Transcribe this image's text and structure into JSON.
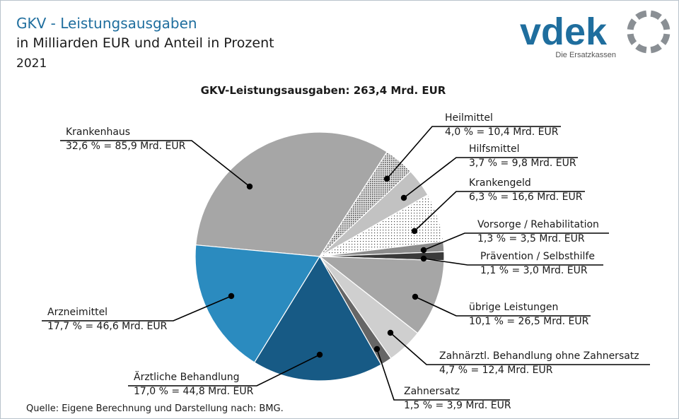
{
  "header": {
    "title": "GKV - Leistungsausgaben",
    "subtitle": "in Milliarden EUR und Anteil in Prozent",
    "year": "2021"
  },
  "logo": {
    "brand": "vdek",
    "tagline": "Die Ersatzkassen",
    "brand_color": "#1f6e9e",
    "ring_color": "#8a8f94"
  },
  "source": "Quelle: Eigene Berechnung und Darstellung nach: BMG.",
  "chart_data": {
    "type": "pie",
    "title": "GKV-Leistungsausgaben:  263,4  Mrd. EUR",
    "unit": "Mrd. EUR",
    "slices": [
      {
        "name": "Krankenhaus",
        "value": 85.9,
        "percent": 32.6,
        "value_label": "32,6 % = 85,9 Mrd. EUR",
        "color": "#a6a6a6",
        "pattern": "solid"
      },
      {
        "name": "Heilmittel",
        "value": 10.4,
        "percent": 4.0,
        "value_label": "4,0 % = 10,4 Mrd. EUR",
        "color": "#b4b4b4",
        "pattern": "dense-dots"
      },
      {
        "name": "Hilfsmittel",
        "value": 9.8,
        "percent": 3.7,
        "value_label": "3,7 % = 9,8 Mrd. EUR",
        "color": "#c2c2c2",
        "pattern": "solid"
      },
      {
        "name": "Krankengeld",
        "value": 16.6,
        "percent": 6.3,
        "value_label": "6,3 % = 16,6 Mrd. EUR",
        "color": "#f2f2f2",
        "pattern": "sparse-dots"
      },
      {
        "name": "Vorsorge / Rehabilitation",
        "value": 3.5,
        "percent": 1.3,
        "value_label": "1,3 % = 3,5 Mrd. EUR",
        "color": "#8c8c8c",
        "pattern": "solid"
      },
      {
        "name": "Prävention / Selbsthilfe",
        "value": 3.0,
        "percent": 1.1,
        "value_label": "1,1 % = 3,0 Mrd. EUR",
        "color": "#3a3a3a",
        "pattern": "solid"
      },
      {
        "name": "übrige Leistungen",
        "value": 26.5,
        "percent": 10.1,
        "value_label": "10,1 % = 26,5 Mrd. EUR",
        "color": "#a6a6a6",
        "pattern": "solid"
      },
      {
        "name": "Zahnärztl. Behandlung ohne Zahnersatz",
        "value": 12.4,
        "percent": 4.7,
        "value_label": "4,7 % = 12,4 Mrd. EUR",
        "color": "#cfcfcf",
        "pattern": "solid"
      },
      {
        "name": "Zahnersatz",
        "value": 3.9,
        "percent": 1.5,
        "value_label": "1,5 % = 3,9 Mrd. EUR",
        "color": "#666666",
        "pattern": "solid"
      },
      {
        "name": "Ärztliche Behandlung",
        "value": 44.8,
        "percent": 17.0,
        "value_label": "17,0 % = 44,8 Mrd. EUR",
        "color": "#175a85",
        "pattern": "solid"
      },
      {
        "name": "Arzneimittel",
        "value": 46.6,
        "percent": 17.7,
        "value_label": "17,7 % = 46,6 Mrd. EUR",
        "color": "#2b8bbf",
        "pattern": "solid"
      }
    ]
  }
}
